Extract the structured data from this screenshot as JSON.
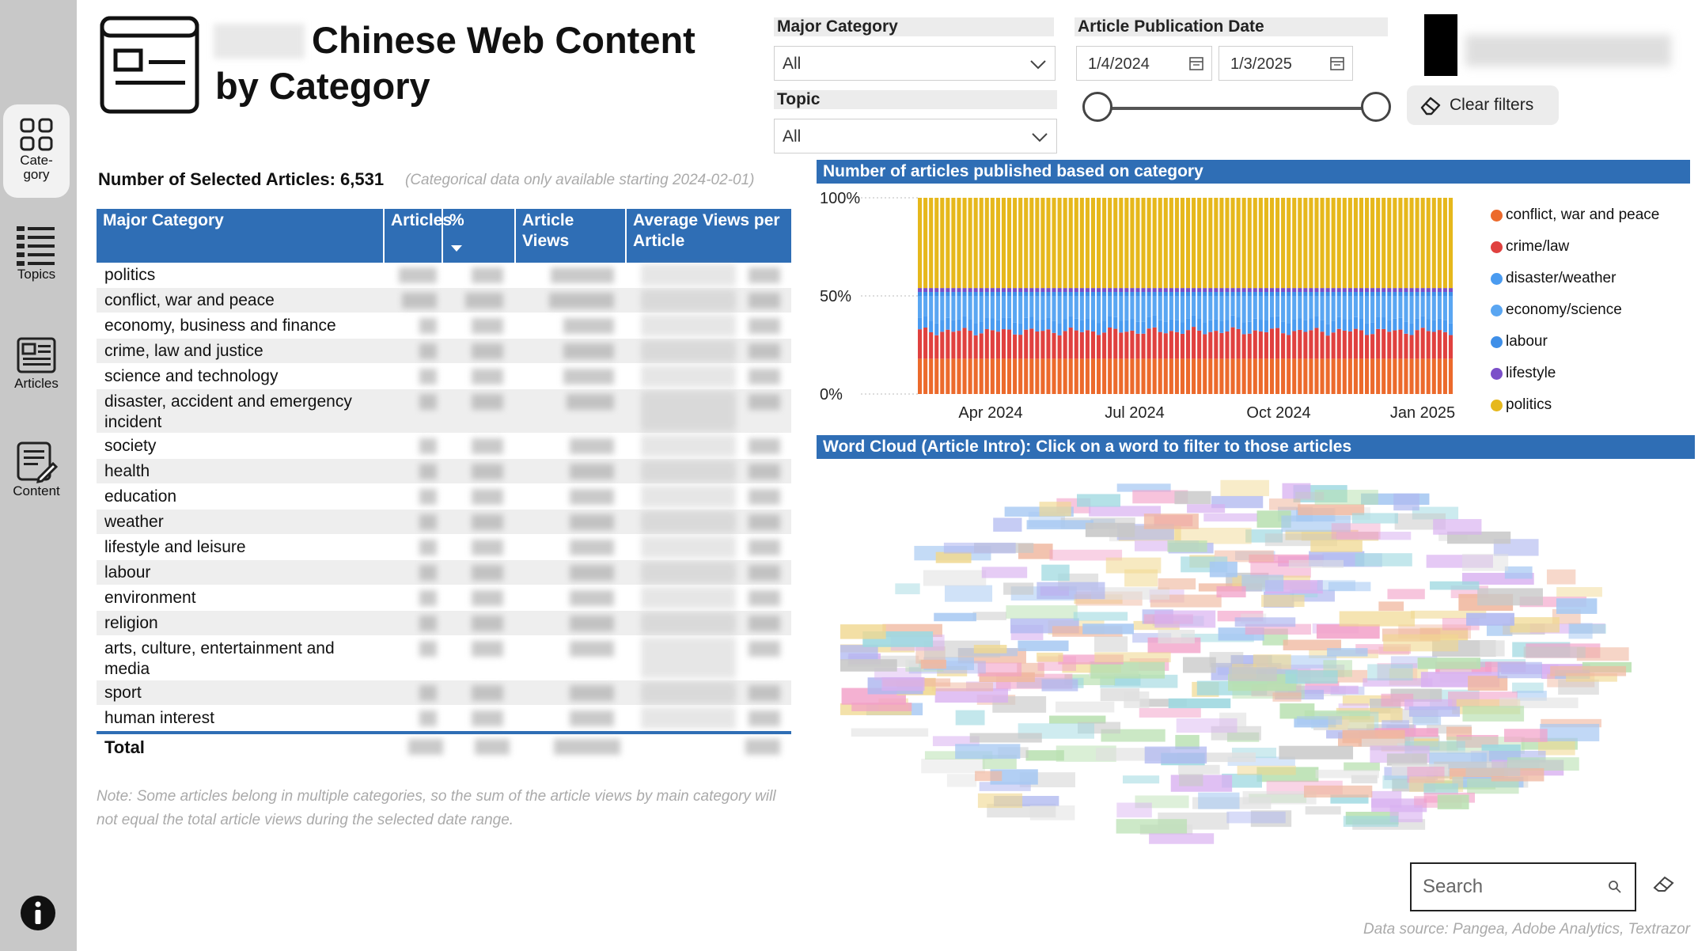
{
  "header": {
    "title_line1": "Chinese Web Content",
    "title_line2": "by Category"
  },
  "nav": {
    "items": [
      {
        "label": "Cate-\ngory",
        "icon": "grid-icon"
      },
      {
        "label": "Topics",
        "icon": "list-icon"
      },
      {
        "label": "Articles",
        "icon": "newspaper-icon"
      },
      {
        "label": "Content",
        "icon": "document-edit-icon"
      }
    ],
    "info_icon": "info-icon"
  },
  "filters": {
    "major_category_label": "Major Category",
    "major_category_value": "All",
    "topic_label": "Topic",
    "topic_value": "All",
    "date_label": "Article Publication Date",
    "date_start": "1/4/2024",
    "date_end": "1/3/2025",
    "clear_label": "Clear filters"
  },
  "summary": {
    "count_text": "Number of Selected Articles: 6,531",
    "note": "(Categorical data only available starting 2024-02-01)"
  },
  "table": {
    "headers": [
      "Major Category",
      "Articles",
      "%",
      "Article Views",
      "Average Views per Article"
    ],
    "rows": [
      "politics",
      "conflict, war and peace",
      "economy, business and finance",
      "crime, law and justice",
      "science and technology",
      "disaster, accident and emergency incident",
      "society",
      "health",
      "education",
      "weather",
      "lifestyle and leisure",
      "labour",
      "environment",
      "religion",
      "arts, culture, entertainment and media",
      "sport",
      "human interest"
    ],
    "total_label": "Total",
    "footnote": "Note: Some articles belong in multiple categories, so the sum of the article views by main category will not equal the total article views during the selected date range."
  },
  "chart_band_title": "Number of articles published based on category",
  "wordcloud_band_title": "Word Cloud (Article Intro): Click on a word to filter to those articles",
  "search_placeholder": "Search",
  "data_source": "Data source: Pangea, Adobe Analytics, Textrazor",
  "colors": {
    "accent": "#2f6eb5",
    "conflict": "#ec6a2c",
    "crime": "#e0413f",
    "disaster": "#2b8ef0",
    "economy": "#2b8ef0",
    "labour": "#2b8ef0",
    "lifestyle": "#7b4fc9",
    "politics": "#e6b81c"
  },
  "chart_data": {
    "type": "area",
    "stacked_percent": true,
    "x_ticks": [
      "Apr 2024",
      "Jul 2024",
      "Oct 2024",
      "Jan 2025"
    ],
    "y_ticks": [
      "100%",
      "50%",
      "0%"
    ],
    "ylim": [
      0,
      100
    ],
    "legend_position": "right",
    "series": [
      {
        "name": "conflict, war and peace",
        "color": "#ec6a2c",
        "approx_share": 18
      },
      {
        "name": "crime/law",
        "color": "#e0413f",
        "approx_share": 14
      },
      {
        "name": "disaster/weather",
        "color": "#4a9bf0",
        "approx_share": 6
      },
      {
        "name": "economy/science",
        "color": "#5aa6f2",
        "approx_share": 12
      },
      {
        "name": "labour",
        "color": "#3f8fe8",
        "approx_share": 2
      },
      {
        "name": "lifestyle",
        "color": "#7b4fc9",
        "approx_share": 2
      },
      {
        "name": "politics",
        "color": "#e6b81c",
        "approx_share": 46
      }
    ]
  }
}
